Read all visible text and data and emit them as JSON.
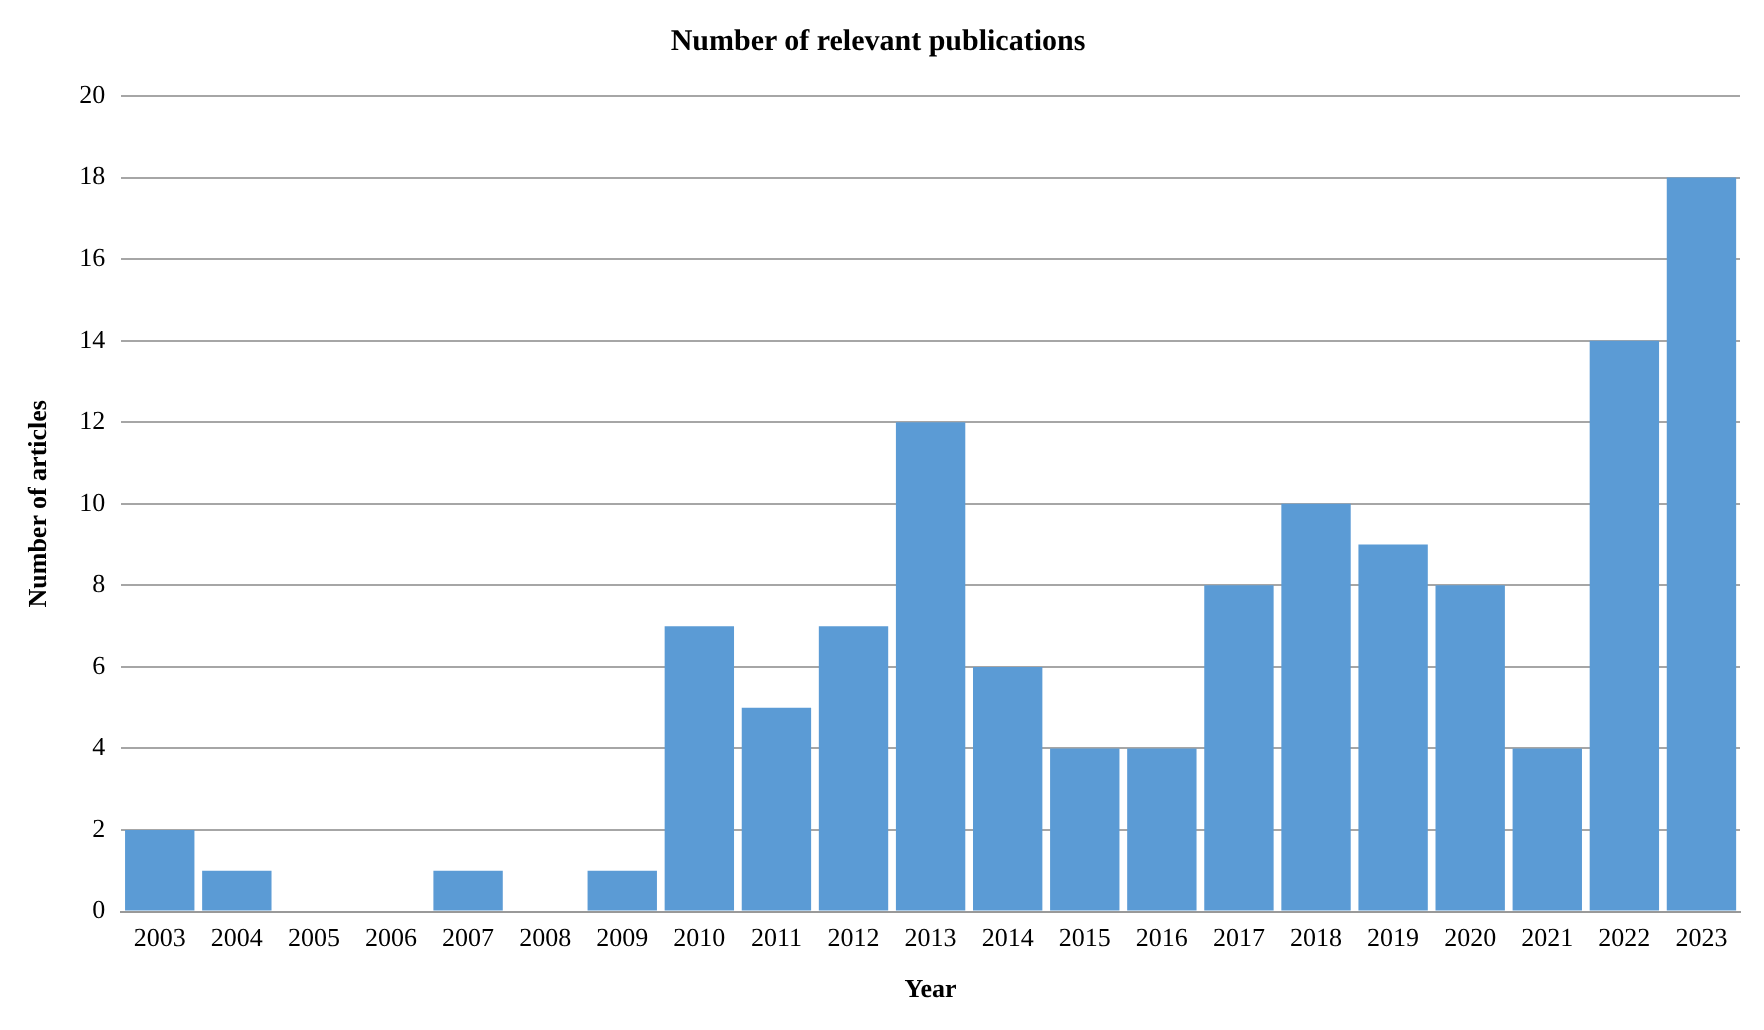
{
  "chart_data": {
    "type": "bar",
    "title": "Number of relevant publications",
    "xlabel": "Year",
    "ylabel": "Number of articles",
    "categories": [
      "2003",
      "2004",
      "2005",
      "2006",
      "2007",
      "2008",
      "2009",
      "2010",
      "2011",
      "2012",
      "2013",
      "2014",
      "2015",
      "2016",
      "2017",
      "2018",
      "2019",
      "2020",
      "2021",
      "2022",
      "2023"
    ],
    "values": [
      2,
      1,
      0,
      0,
      1,
      0,
      1,
      7,
      5,
      7,
      12,
      6,
      4,
      4,
      8,
      10,
      9,
      8,
      4,
      14,
      18
    ],
    "color": "#5b9bd5",
    "ylim": [
      0,
      20
    ],
    "yticks": [
      0,
      2,
      4,
      6,
      8,
      10,
      12,
      14,
      16,
      18,
      20
    ],
    "grid": "y",
    "legend": false
  }
}
